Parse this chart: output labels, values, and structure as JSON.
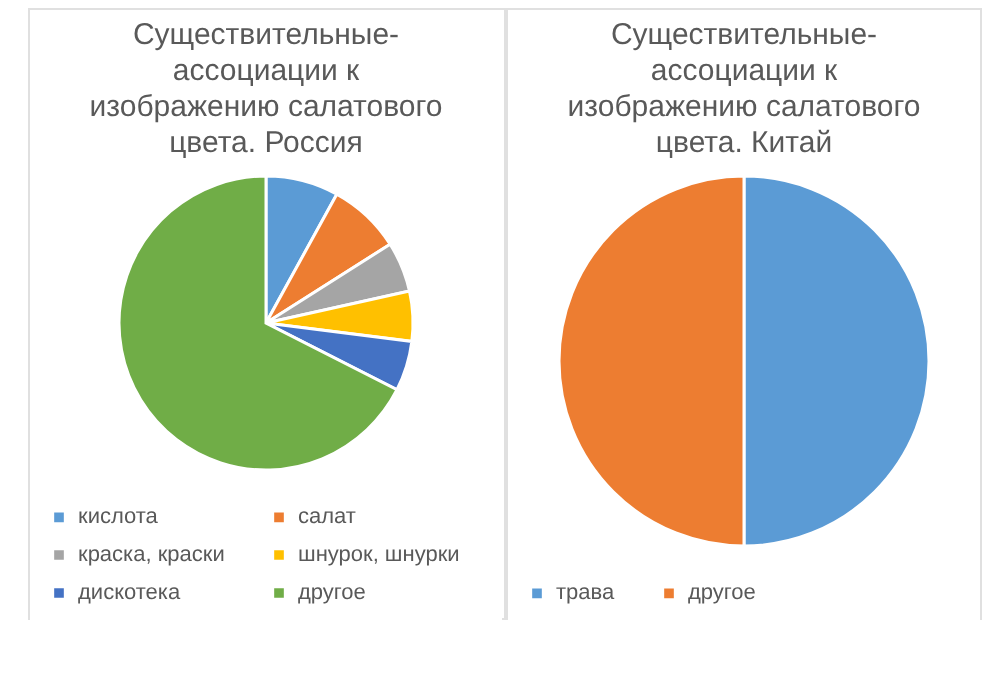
{
  "chart_data": [
    {
      "type": "pie",
      "title": "Существительные-ассоциации к изображению салатового цвета. Россия",
      "categories": [
        "кислота",
        "салат",
        "краска, краски",
        "шнурок, шнурки",
        "дискотека",
        "другое"
      ],
      "values": [
        8,
        8,
        5.5,
        5.5,
        5.5,
        67.5
      ],
      "colors": [
        "#5b9bd5",
        "#ed7d31",
        "#a5a5a5",
        "#ffc000",
        "#4472c4",
        "#70ad47"
      ],
      "legend": "bottom"
    },
    {
      "type": "pie",
      "title": "Существительные-ассоциации к изображению салатового цвета. Китай",
      "categories": [
        "трава",
        "другое"
      ],
      "values": [
        50,
        50
      ],
      "colors": [
        "#5b9bd5",
        "#ed7d31"
      ],
      "legend": "bottom"
    }
  ]
}
